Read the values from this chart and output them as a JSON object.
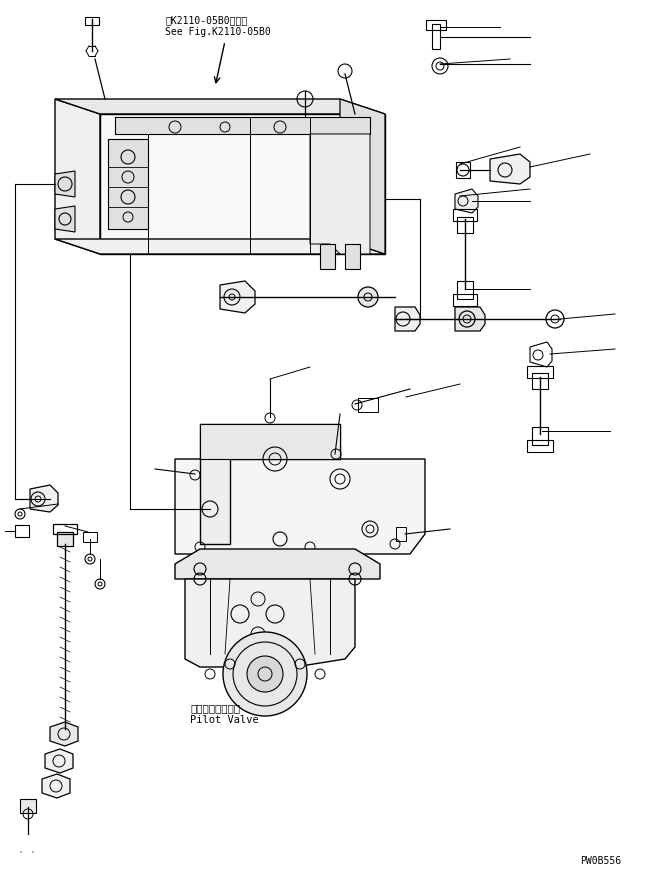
{
  "title_jp": "第K2110-05B0図参照",
  "title_en": "See Fig.K2110-05B0",
  "label_jp": "パイロットバルブ",
  "label_en": "Pilot Valve",
  "watermark": "PW0B556",
  "bg_color": "#ffffff",
  "line_color": "#000000",
  "figsize": [
    6.5,
    8.7
  ],
  "dpi": 100
}
